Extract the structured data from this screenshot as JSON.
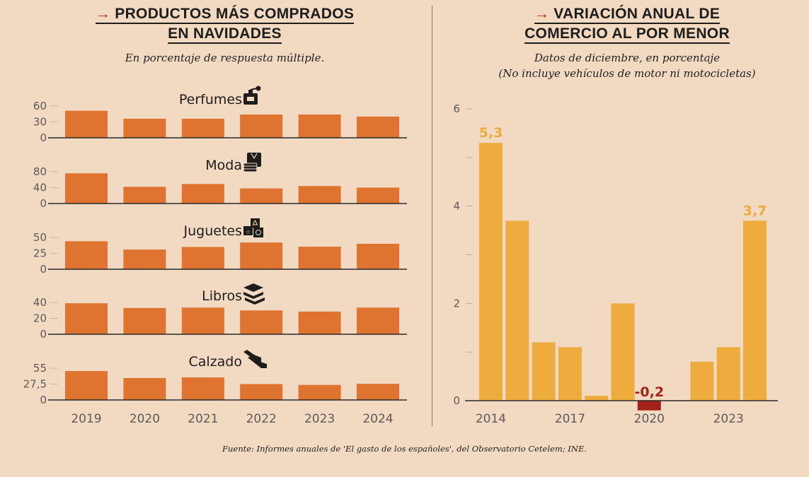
{
  "left": {
    "title_line1": "PRODUCTOS MÁS COMPRADOS",
    "title_line2": "EN NAVIDADES",
    "arrow": "→",
    "subtitle": "En porcentaje de respuesta múltiple."
  },
  "right": {
    "title_line1": "VARIACIÓN ANUAL DE",
    "title_line2": "COMERCIO AL POR MENOR",
    "arrow": "→",
    "subtitle_line1": "Datos de diciembre, en porcentaje",
    "subtitle_line2": "(No incluye vehículos de motor ni motocicletas)"
  },
  "source": "Fuente: Informes anuales de 'El gasto de los españoles', del Observatorio Cetelem; INE.",
  "colors": {
    "bar_left": "#df7330",
    "bar_right": "#eeab3e",
    "negative": "#a3231a",
    "label_positive": "#eeab3e",
    "label_negative": "#a3231a",
    "background": "#f2d9c2"
  },
  "chart_data": [
    {
      "type": "bar",
      "layout": "small-multiples",
      "categories": [
        "2019",
        "2020",
        "2021",
        "2022",
        "2023",
        "2024"
      ],
      "panels": [
        {
          "name": "Perfumes",
          "icon": "perfume-icon",
          "ticks": [
            "0",
            "30",
            "60"
          ],
          "tick_values": [
            0,
            30,
            60
          ],
          "values": [
            51,
            36,
            36,
            44,
            44,
            40
          ]
        },
        {
          "name": "Moda",
          "icon": "clothing-icon",
          "ticks": [
            "0",
            "40",
            "80"
          ],
          "tick_values": [
            0,
            40,
            80
          ],
          "values": [
            76,
            42,
            49,
            38,
            44,
            40
          ]
        },
        {
          "name": "Juguetes",
          "icon": "toy-blocks-icon",
          "ticks": [
            "0",
            "25",
            "50"
          ],
          "tick_values": [
            0,
            25,
            50
          ],
          "values": [
            44,
            31,
            35,
            42,
            35.5,
            40
          ]
        },
        {
          "name": "Libros",
          "icon": "books-icon",
          "ticks": [
            "0",
            "20",
            "40"
          ],
          "tick_values": [
            0,
            20,
            40
          ],
          "values": [
            39,
            33,
            33.5,
            30,
            28.5,
            33.5
          ]
        },
        {
          "name": "Calzado",
          "icon": "shoes-icon",
          "ticks": [
            "0",
            "27,5",
            "55"
          ],
          "tick_values": [
            0,
            27.5,
            55
          ],
          "values": [
            50,
            38,
            39,
            27.5,
            26,
            28
          ]
        }
      ],
      "xlabel": "",
      "ylabel": ""
    },
    {
      "type": "bar",
      "x": [
        "2014",
        "2015",
        "2016",
        "2017",
        "2018",
        "2019",
        "2020",
        "2021",
        "2022",
        "2023",
        "2024"
      ],
      "values": [
        5.3,
        3.7,
        1.2,
        1.1,
        0.1,
        2.0,
        -0.2,
        0.0,
        0.8,
        1.1,
        3.7
      ],
      "x_tick_labels": [
        "2014",
        "2017",
        "2020",
        "2023"
      ],
      "y_tick_labels": [
        "0",
        "2",
        "4",
        "6"
      ],
      "y_minor_ticks": [
        1,
        3,
        5
      ],
      "ylim": [
        -0.2,
        6
      ],
      "data_labels": [
        {
          "x": "2014",
          "text": "5,3"
        },
        {
          "x": "2020",
          "text": "-0,2"
        },
        {
          "x": "2024",
          "text": "3,7"
        }
      ],
      "xlabel": "",
      "ylabel": ""
    }
  ]
}
